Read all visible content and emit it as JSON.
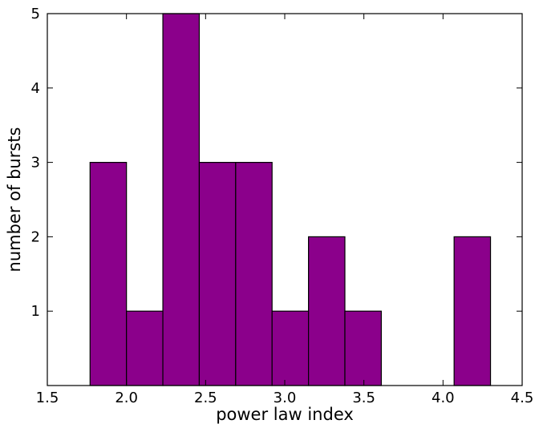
{
  "chart_data": {
    "type": "bar",
    "title": "",
    "xlabel": "power law index",
    "ylabel": "number of bursts",
    "xlim": [
      1.5,
      4.5
    ],
    "ylim": [
      0,
      5
    ],
    "x_ticks": [
      "1.5",
      "2.0",
      "2.5",
      "3.0",
      "3.5",
      "4.0",
      "4.5"
    ],
    "y_ticks": [
      "1",
      "2",
      "3",
      "4",
      "5"
    ],
    "bin_edges": [
      1.77,
      2.0,
      2.23,
      2.46,
      2.69,
      2.92,
      3.15,
      3.38,
      3.61,
      3.84,
      4.07,
      4.3
    ],
    "values": [
      3,
      1,
      5,
      3,
      3,
      1,
      2,
      1,
      0,
      0,
      2
    ],
    "bar_color": "#8b008b",
    "edge_color": "#000000",
    "grid": false,
    "legend": "none"
  }
}
